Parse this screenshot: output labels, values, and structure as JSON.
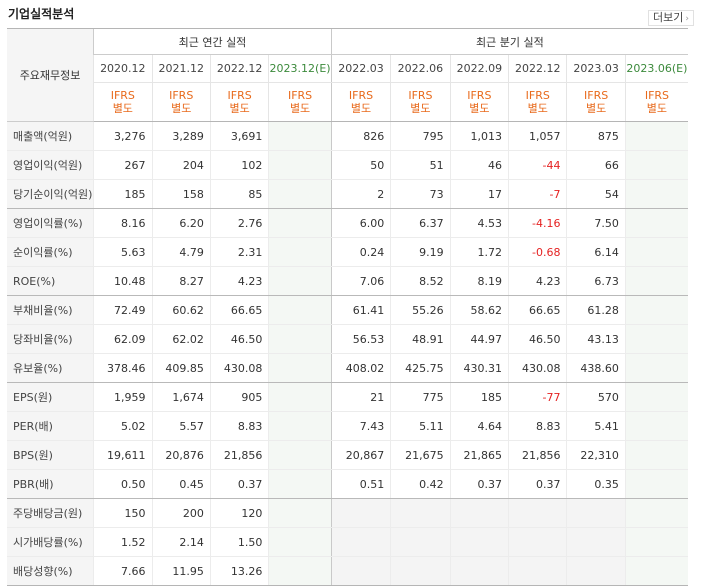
{
  "title": "기업실적분석",
  "more_label": "더보기",
  "table": {
    "corner_label": "주요재무정보",
    "annual_group": "최근 연간 실적",
    "quarter_group": "최근 분기 실적",
    "annual_dates": [
      "2020.12",
      "2021.12",
      "2022.12",
      "2023.12(E)"
    ],
    "quarter_dates": [
      "2022.03",
      "2022.06",
      "2022.09",
      "2022.12",
      "2023.03",
      "2023.06(E)"
    ],
    "standard_top": "IFRS",
    "standard_bottom": "별도",
    "rows": [
      {
        "label": "매출액(억원)",
        "values": [
          "3,276",
          "3,289",
          "3,691",
          "",
          "826",
          "795",
          "1,013",
          "1,057",
          "875",
          ""
        ]
      },
      {
        "label": "영업이익(억원)",
        "values": [
          "267",
          "204",
          "102",
          "",
          "50",
          "51",
          "46",
          "-44",
          "66",
          ""
        ]
      },
      {
        "label": "당기순이익(억원)",
        "values": [
          "185",
          "158",
          "85",
          "",
          "2",
          "73",
          "17",
          "-7",
          "54",
          ""
        ]
      },
      {
        "label": "영업이익률(%)",
        "values": [
          "8.16",
          "6.20",
          "2.76",
          "",
          "6.00",
          "6.37",
          "4.53",
          "-4.16",
          "7.50",
          ""
        ]
      },
      {
        "label": "순이익률(%)",
        "values": [
          "5.63",
          "4.79",
          "2.31",
          "",
          "0.24",
          "9.19",
          "1.72",
          "-0.68",
          "6.14",
          ""
        ]
      },
      {
        "label": "ROE(%)",
        "values": [
          "10.48",
          "8.27",
          "4.23",
          "",
          "7.06",
          "8.52",
          "8.19",
          "4.23",
          "6.73",
          ""
        ]
      },
      {
        "label": "부채비율(%)",
        "values": [
          "72.49",
          "60.62",
          "66.65",
          "",
          "61.41",
          "55.26",
          "58.62",
          "66.65",
          "61.28",
          ""
        ]
      },
      {
        "label": "당좌비율(%)",
        "values": [
          "62.09",
          "62.02",
          "46.50",
          "",
          "56.53",
          "48.91",
          "44.97",
          "46.50",
          "43.13",
          ""
        ]
      },
      {
        "label": "유보율(%)",
        "values": [
          "378.46",
          "409.85",
          "430.08",
          "",
          "408.02",
          "425.75",
          "430.31",
          "430.08",
          "438.60",
          ""
        ]
      },
      {
        "label": "EPS(원)",
        "values": [
          "1,959",
          "1,674",
          "905",
          "",
          "21",
          "775",
          "185",
          "-77",
          "570",
          ""
        ]
      },
      {
        "label": "PER(배)",
        "values": [
          "5.02",
          "5.57",
          "8.83",
          "",
          "7.43",
          "5.11",
          "4.64",
          "8.83",
          "5.41",
          ""
        ]
      },
      {
        "label": "BPS(원)",
        "values": [
          "19,611",
          "20,876",
          "21,856",
          "",
          "20,867",
          "21,675",
          "21,865",
          "21,856",
          "22,310",
          ""
        ]
      },
      {
        "label": "PBR(배)",
        "values": [
          "0.50",
          "0.45",
          "0.37",
          "",
          "0.51",
          "0.42",
          "0.37",
          "0.37",
          "0.35",
          ""
        ]
      },
      {
        "label": "주당배당금(원)",
        "values": [
          "150",
          "200",
          "120",
          "",
          "",
          "",
          "",
          "",
          "",
          ""
        ]
      },
      {
        "label": "시가배당률(%)",
        "values": [
          "1.52",
          "2.14",
          "1.50",
          "",
          "",
          "",
          "",
          "",
          "",
          ""
        ]
      },
      {
        "label": "배당성향(%)",
        "values": [
          "7.66",
          "11.95",
          "13.26",
          "",
          "",
          "",
          "",
          "",
          "",
          ""
        ]
      }
    ]
  },
  "colors": {
    "standard": "#e86a1c",
    "estimate_label": "#3c8a3c",
    "negative": "#e52222"
  }
}
